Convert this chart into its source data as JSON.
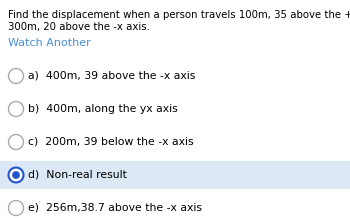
{
  "question_line1": "Find the displacement when a person travels 100m, 35 above the +x axis and then",
  "question_line2": "300m, 20 above the -x axis.",
  "watch_another": "Watch Another",
  "watch_color": "#4a90d9",
  "options": [
    {
      "label": "a)",
      "text": "400m, 39 above the -x axis",
      "selected": false
    },
    {
      "label": "b)",
      "text": "400m, along the yx axis",
      "selected": false
    },
    {
      "label": "c)",
      "text": "200m, 39 below the -x axis",
      "selected": false
    },
    {
      "label": "d)",
      "text": "Non-real result",
      "selected": true
    },
    {
      "label": "e)",
      "text": "256m,38.7 above the -x axis",
      "selected": false
    }
  ],
  "selected_bg": "#dce8f5",
  "circle_color": "#aaaaaa",
  "selected_circle_outer": "#2255cc",
  "selected_circle_inner": "#2255cc",
  "fig_bg": "#ffffff",
  "question_fontsize": 7.3,
  "option_fontsize": 7.8,
  "watch_fontsize": 8.0
}
